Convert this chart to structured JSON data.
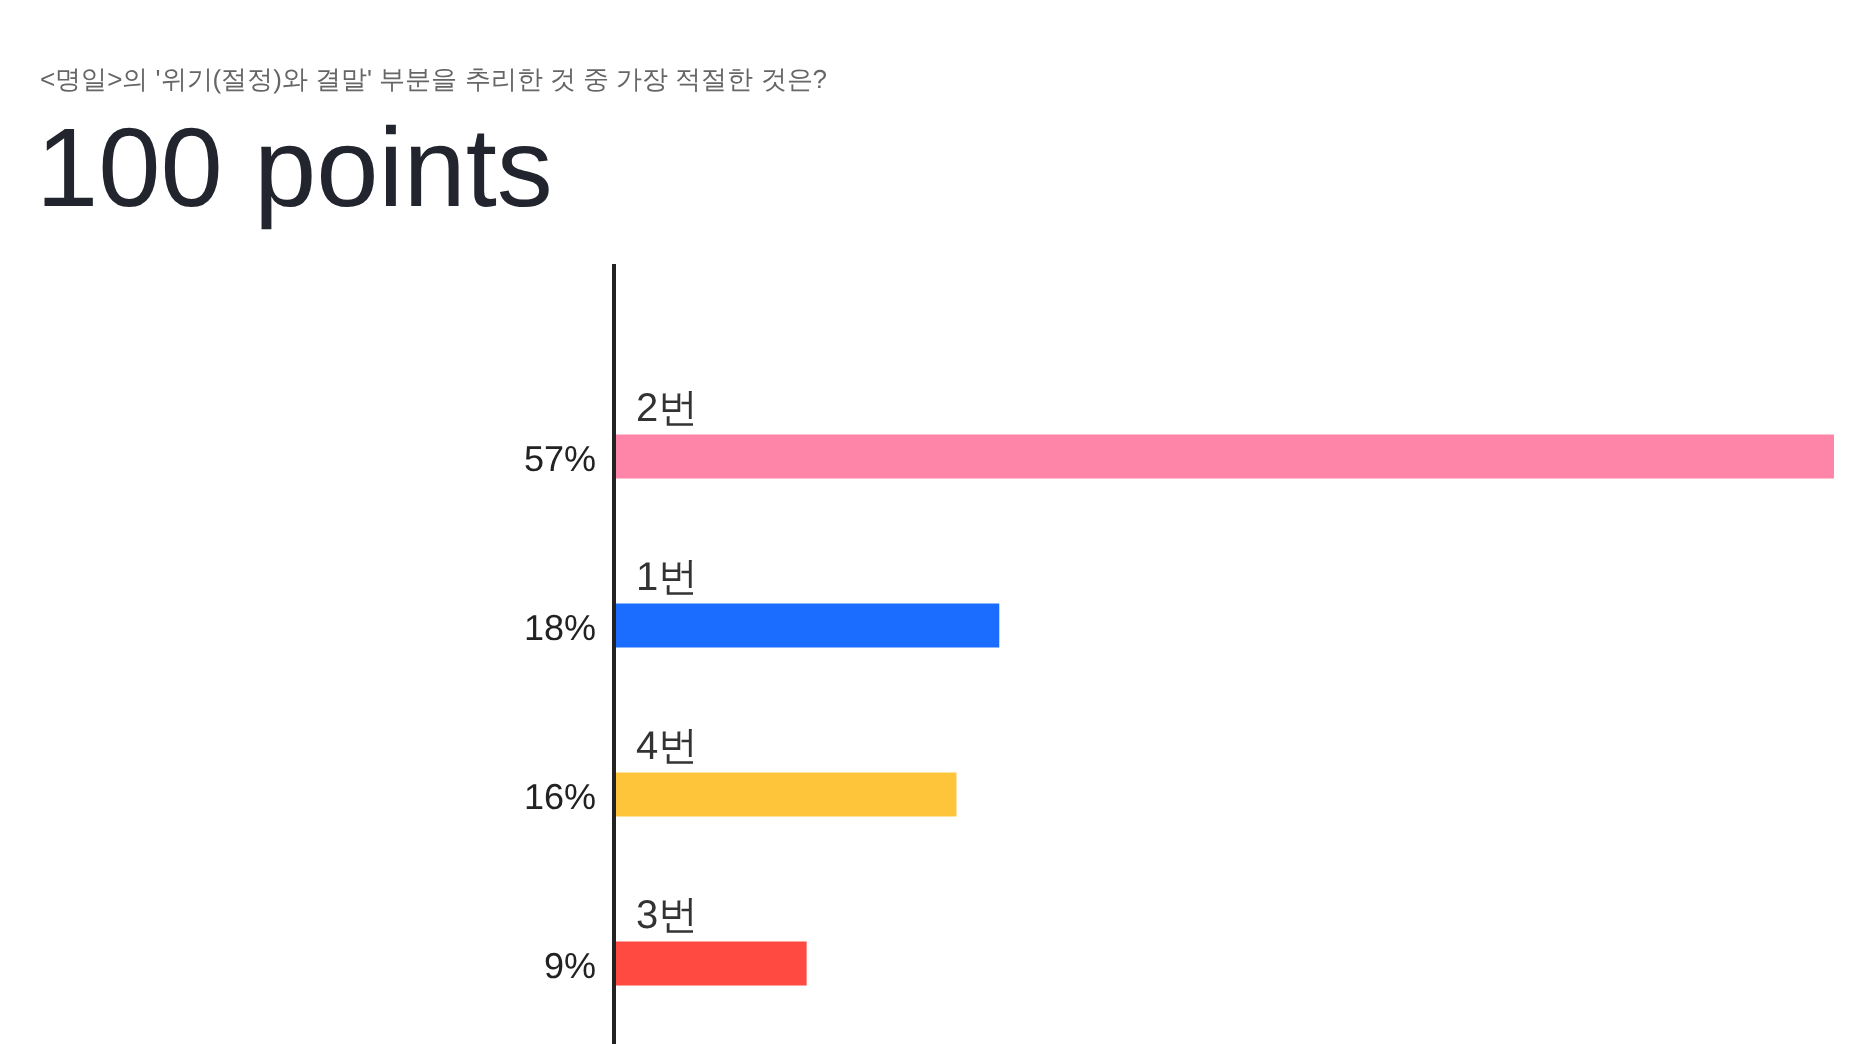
{
  "chart_data": {
    "type": "bar",
    "orientation": "horizontal",
    "subtitle": "<명일>의 '위기(절정)와 결말' 부분을 추리한 것 중 가장 적절한 것은?",
    "title": "100 points",
    "categories": [
      "2번",
      "1번",
      "4번",
      "3번"
    ],
    "values": [
      57,
      18,
      16,
      9
    ],
    "value_labels": [
      "57%",
      "18%",
      "16%",
      "9%"
    ],
    "colors": [
      "#ff85a8",
      "#1a6dff",
      "#ffc53a",
      "#ff4a41"
    ]
  }
}
